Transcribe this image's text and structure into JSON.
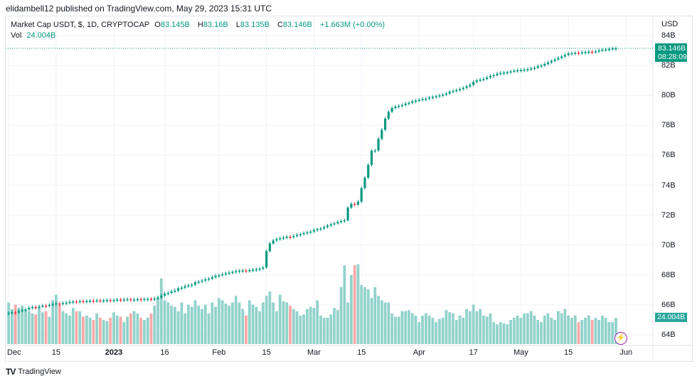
{
  "header": {
    "published": "elidambell12 published on TradingView.com, May 29, 2023 15:31 UTC"
  },
  "legend": {
    "symbol": "Market Cap USDT, $, 1D, CRYPTOCAP",
    "o_label": "O",
    "o": "83.145B",
    "h_label": "H",
    "h": "83.16B",
    "l_label": "L",
    "l": "83.135B",
    "c_label": "C",
    "c": "83.146B",
    "change": "+1.663M (+0.00%)",
    "vol_label": "Vol",
    "vol": "24.004B"
  },
  "price_axis": {
    "currency": "USD",
    "ticks": [
      "84B",
      "82B",
      "80B",
      "78B",
      "76B",
      "74B",
      "72B",
      "70B",
      "68B",
      "66B",
      "64B"
    ]
  },
  "last_price": {
    "value": "83.146B",
    "countdown": "08:28:09"
  },
  "last_volume": "24.004B",
  "footer": {
    "brand": "TradingView"
  },
  "colors": {
    "up": "#089981",
    "down": "#f23645",
    "vol_up": "#92d2cc",
    "vol_down": "#f7a9a7",
    "grid": "#f0f3fa"
  },
  "chart_data": {
    "type": "candlestick",
    "interval": "1D",
    "ylabel": "USD",
    "ylim": [
      63.5,
      85.2
    ],
    "date_ticks": [
      "Dec",
      "15",
      "2023",
      "16",
      "Feb",
      "15",
      "Mar",
      "15",
      "Apr",
      "17",
      "May",
      "15",
      "Jun"
    ],
    "months": [
      {
        "month": "2022-12",
        "close": [
          65.45,
          65.5,
          65.48,
          65.6,
          65.65,
          65.7,
          65.8,
          65.85,
          65.82,
          65.9,
          65.95,
          65.93,
          66.0,
          66.05,
          66.1,
          66.08,
          66.12,
          66.15,
          66.2,
          66.22,
          66.2,
          66.25,
          66.23,
          66.25,
          66.28,
          66.26,
          66.3,
          66.28,
          66.3,
          66.32,
          66.3
        ],
        "volume": [
          38,
          32,
          36,
          33,
          35,
          31,
          30,
          28,
          27,
          33,
          29,
          30,
          25,
          40,
          45,
          36,
          30,
          28,
          26,
          33,
          30,
          30,
          25,
          26,
          24,
          22,
          28,
          24,
          22,
          21,
          24
        ]
      },
      {
        "month": "2023-01",
        "close": [
          66.32,
          66.35,
          66.33,
          66.36,
          66.38,
          66.35,
          66.36,
          66.38,
          66.37,
          66.39,
          66.4,
          66.38,
          66.42,
          66.5,
          66.62,
          66.75,
          66.8,
          66.9,
          66.95,
          67.1,
          67.15,
          67.25,
          67.3,
          67.35,
          67.5,
          67.55,
          67.62,
          67.7,
          67.75,
          67.85,
          67.95
        ],
        "volume": [
          29,
          26,
          25,
          20,
          25,
          28,
          30,
          28,
          24,
          22,
          24,
          28,
          35,
          42,
          60,
          40,
          38,
          35,
          34,
          30,
          38,
          28,
          36,
          34,
          40,
          35,
          32,
          36,
          28,
          38,
          34
        ]
      },
      {
        "month": "2023-02",
        "close": [
          67.98,
          68.05,
          68.1,
          68.15,
          68.2,
          68.25,
          68.28,
          68.3,
          68.27,
          68.32,
          68.35,
          68.38,
          68.42,
          68.5,
          69.6,
          70.1,
          70.3,
          70.4,
          70.45,
          70.5,
          70.55,
          70.52,
          70.6,
          70.68,
          70.72,
          70.8,
          70.85,
          70.9
        ],
        "volume": [
          42,
          40,
          37,
          35,
          38,
          44,
          38,
          32,
          26,
          40,
          36,
          34,
          30,
          38,
          44,
          48,
          38,
          30,
          45,
          39,
          38,
          35,
          32,
          30,
          26,
          27,
          32,
          34
        ]
      },
      {
        "month": "2023-03",
        "close": [
          71.0,
          71.05,
          71.1,
          71.2,
          71.3,
          71.38,
          71.45,
          71.55,
          71.6,
          71.65,
          72.5,
          72.75,
          72.7,
          72.9,
          73.8,
          74.5,
          75.35,
          76.3,
          76.32,
          77.1,
          77.7,
          78.45,
          78.9,
          79.15,
          79.25,
          79.3,
          79.35,
          79.45,
          79.5,
          79.6,
          79.65
        ],
        "volume": [
          33,
          40,
          26,
          24,
          24,
          27,
          33,
          31,
          52,
          72,
          38,
          63,
          72,
          73,
          54,
          52,
          50,
          42,
          52,
          44,
          40,
          38,
          38,
          28,
          25,
          25,
          30,
          30,
          31,
          28,
          26
        ]
      },
      {
        "month": "2023-04",
        "close": [
          79.7,
          79.75,
          79.78,
          79.85,
          79.9,
          79.95,
          80.0,
          80.05,
          80.12,
          80.25,
          80.3,
          80.35,
          80.42,
          80.5,
          80.6,
          80.7,
          80.9,
          81.0,
          81.05,
          81.1,
          81.2,
          81.3,
          81.35,
          81.45,
          81.5,
          81.52,
          81.55,
          81.6,
          81.65,
          81.68
        ],
        "volume": [
          20,
          26,
          28,
          26,
          24,
          20,
          23,
          24,
          31,
          29,
          28,
          22,
          26,
          24,
          32,
          30,
          36,
          30,
          32,
          26,
          25,
          28,
          20,
          18,
          20,
          19,
          18,
          22,
          24,
          26
        ]
      },
      {
        "month": "2023-05",
        "close": [
          81.7,
          81.72,
          81.75,
          81.8,
          81.85,
          81.95,
          82.0,
          82.1,
          82.2,
          82.3,
          82.4,
          82.5,
          82.6,
          82.7,
          82.8,
          82.82,
          82.85,
          82.83,
          82.88,
          82.9,
          82.92,
          82.9,
          82.95,
          83.0,
          83.05,
          83.08,
          83.1,
          83.145,
          83.146
        ],
        "volume": [
          24,
          28,
          28,
          30,
          26,
          22,
          20,
          26,
          28,
          24,
          22,
          30,
          28,
          32,
          26,
          24,
          26,
          20,
          22,
          24,
          26,
          22,
          24,
          22,
          26,
          24,
          20,
          20,
          24.004
        ]
      }
    ]
  }
}
